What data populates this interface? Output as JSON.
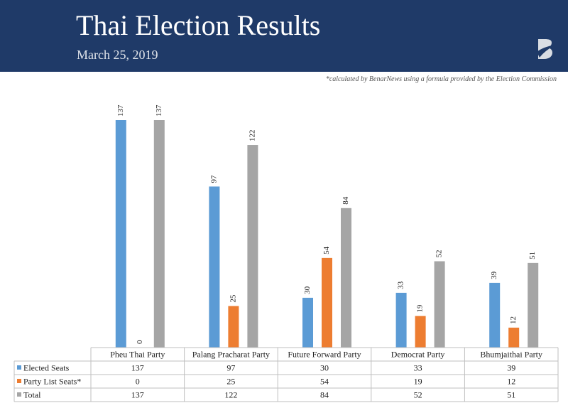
{
  "header": {
    "title": "Thai Election Results",
    "subtitle": "March 25, 2019",
    "footnote": "*calculated by BenarNews using a formula provided by the Election Commission"
  },
  "chart_data": {
    "type": "bar",
    "categories": [
      "Pheu Thai Party",
      "Palang Pracharat Party",
      "Future Forward Party",
      "Democrat Party",
      "Bhumjaithai Party"
    ],
    "series": [
      {
        "name": "Elected Seats",
        "values": [
          137,
          97,
          30,
          33,
          39
        ],
        "color": "#5b9bd5"
      },
      {
        "name": "Party List Seats*",
        "values": [
          0,
          25,
          54,
          19,
          12
        ],
        "color": "#ed7d31"
      },
      {
        "name": "Total",
        "values": [
          137,
          122,
          84,
          52,
          51
        ],
        "color": "#a5a5a5"
      }
    ],
    "ylim": [
      0,
      137
    ],
    "grid": false,
    "legend": "table-bottom",
    "data_table": true
  }
}
